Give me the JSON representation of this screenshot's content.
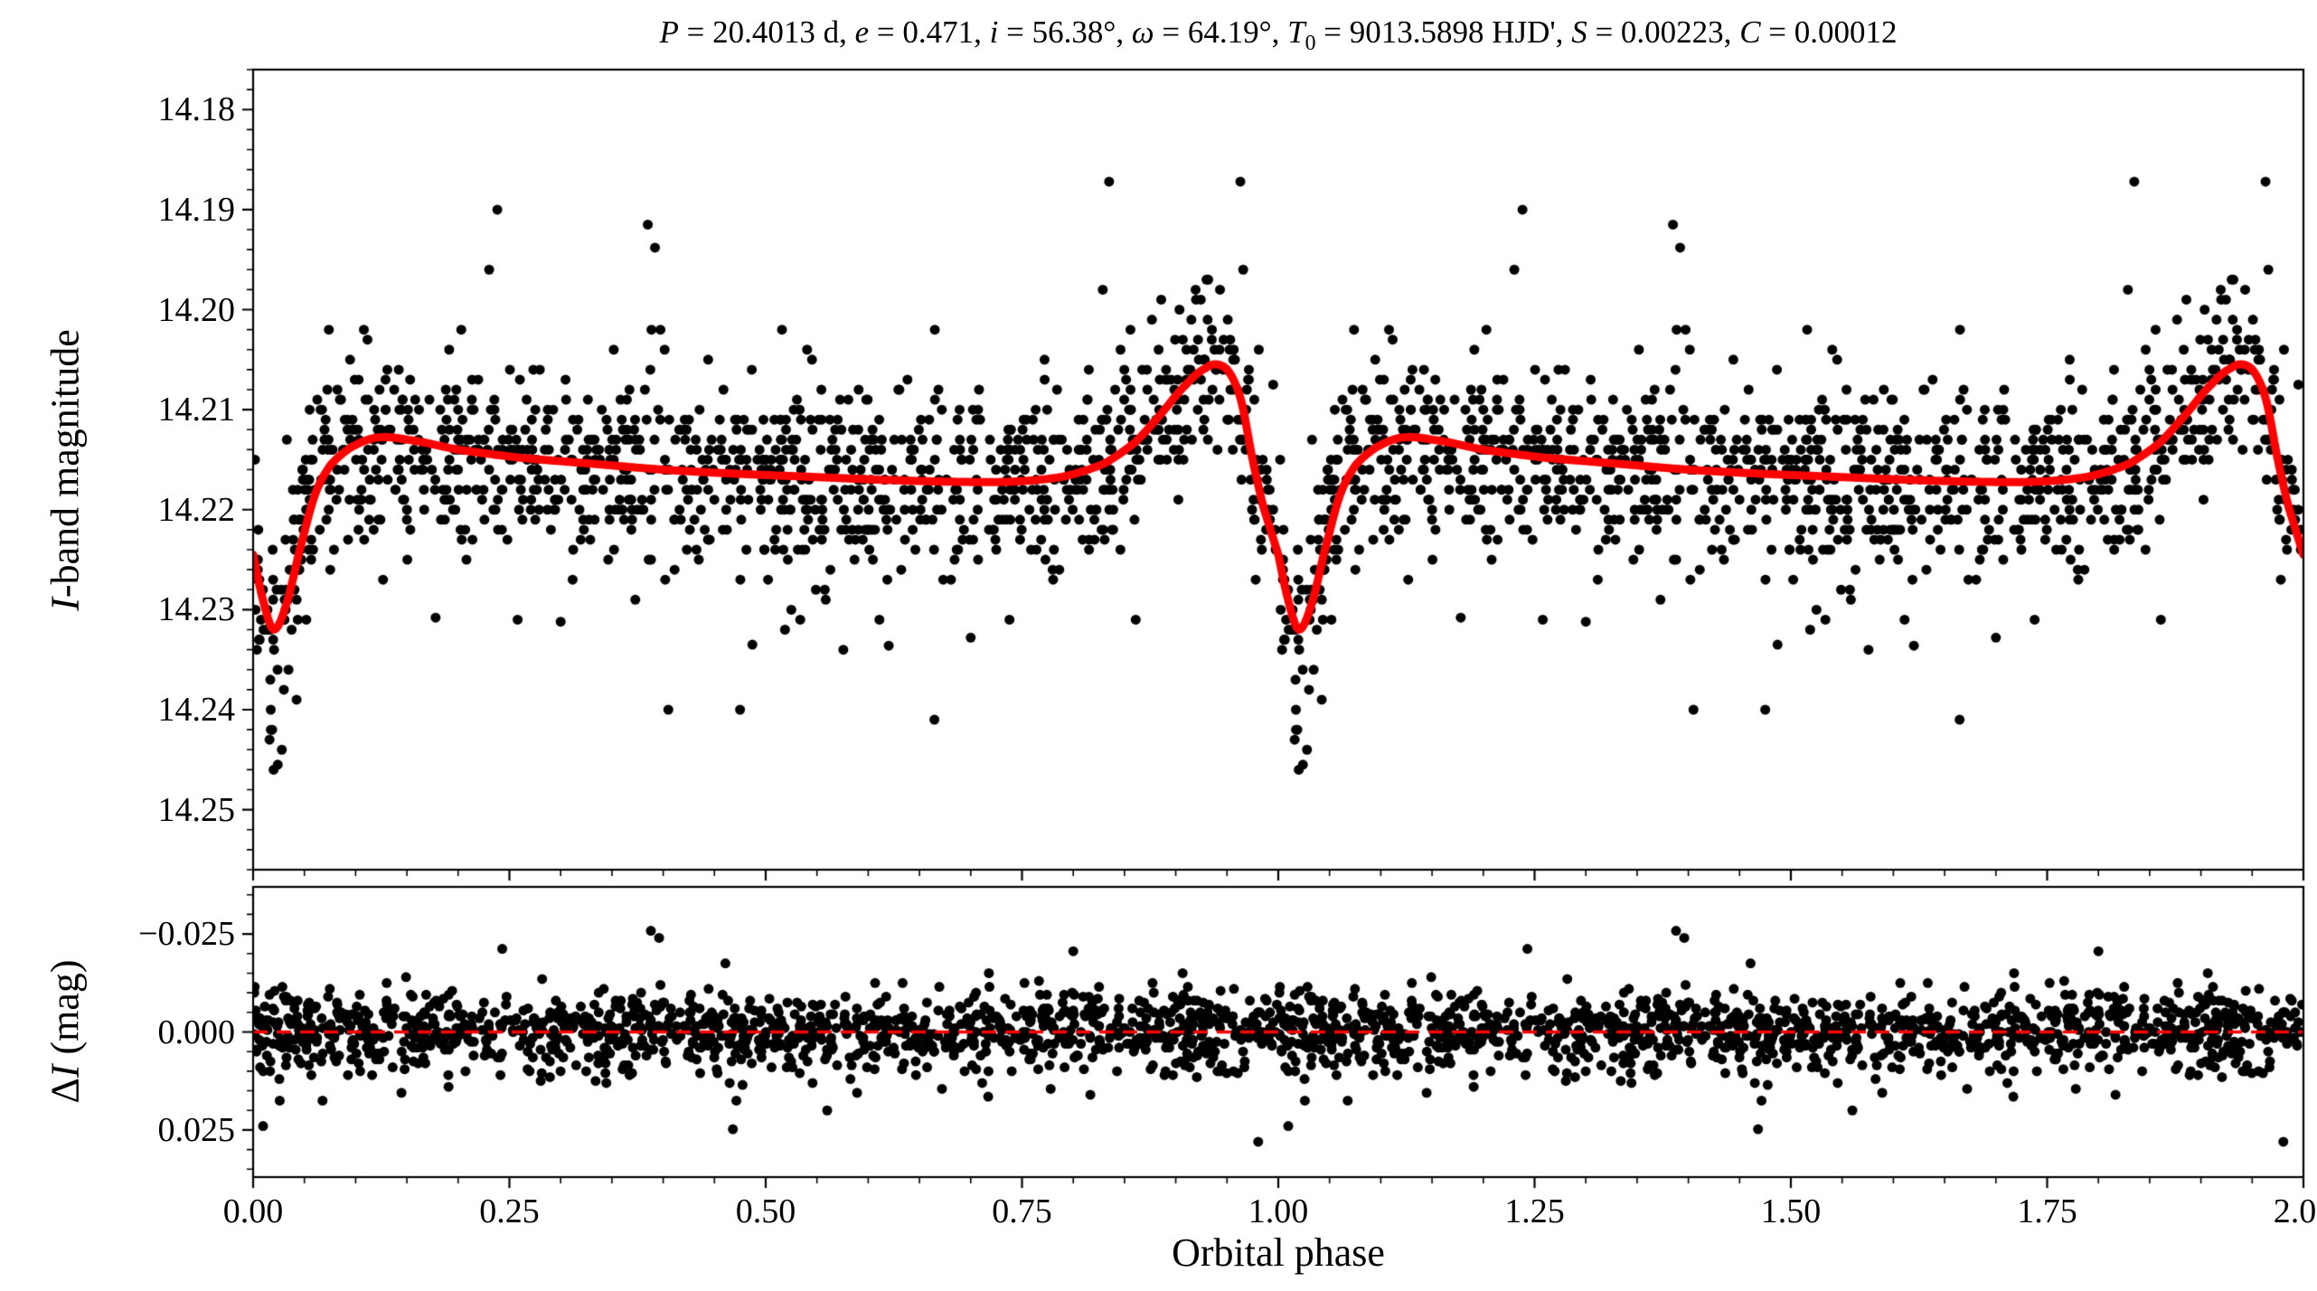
{
  "figure": {
    "title_text": "P = 20.4013 d, e = 0.471, i = 56.38°, ω = 64.19°, T0 = 9013.5898 HJD', S = 0.00223, C = 0.00012",
    "title_parts": [
      {
        "t": "P",
        "s": "it"
      },
      {
        "t": " = 20.4013 d, ",
        "s": "rm"
      },
      {
        "t": "e",
        "s": "it"
      },
      {
        "t": " = 0.471, ",
        "s": "rm"
      },
      {
        "t": "i",
        "s": "it"
      },
      {
        "t": " = 56.38°, ",
        "s": "rm"
      },
      {
        "t": "ω",
        "s": "it"
      },
      {
        "t": " = 64.19°, ",
        "s": "rm"
      },
      {
        "t": "T",
        "s": "it"
      },
      {
        "t": "0",
        "s": "sub"
      },
      {
        "t": " = 9013.5898 HJD', ",
        "s": "rm"
      },
      {
        "t": "S",
        "s": "it"
      },
      {
        "t": " = 0.00223, ",
        "s": "rm"
      },
      {
        "t": "C",
        "s": "it"
      },
      {
        "t": " = 0.00012",
        "s": "rm"
      }
    ],
    "xlabel": "Orbital phase"
  },
  "chart_data": {
    "type": "scatter",
    "xlabel": "Orbital phase",
    "xlim": [
      0,
      2
    ],
    "x_major_ticks": [
      0,
      0.25,
      0.5,
      0.75,
      1,
      1.25,
      1.5,
      1.75,
      2
    ],
    "x_tick_labels": [
      "0.00",
      "0.25",
      "0.50",
      "0.75",
      "1.00",
      "1.25",
      "1.50",
      "1.75",
      "2.00"
    ],
    "x_minor_step": 0.05,
    "duplicate_at_plus_one": true,
    "panels": [
      {
        "name": "light_curve",
        "ylabel_text": "I-band magnitude",
        "ylabel_parts": [
          {
            "t": "I",
            "s": "it"
          },
          {
            "t": "-band magnitude",
            "s": "rm"
          }
        ],
        "y_inverted": true,
        "ylim": [
          14.176,
          14.256
        ],
        "y_major_ticks": [
          14.18,
          14.19,
          14.2,
          14.21,
          14.22,
          14.23,
          14.24,
          14.25
        ],
        "y_tick_labels": [
          "14.18",
          "14.19",
          "14.20",
          "14.21",
          "14.22",
          "14.23",
          "14.24",
          "14.25"
        ],
        "y_minor_step": 0.002,
        "marker_color": "#000000",
        "model_color": "#ff0000",
        "model_keypoints": [
          [
            0.0,
            14.2245
          ],
          [
            0.01,
            14.2292
          ],
          [
            0.02,
            14.232
          ],
          [
            0.032,
            14.2296
          ],
          [
            0.045,
            14.2242
          ],
          [
            0.06,
            14.2186
          ],
          [
            0.075,
            14.2156
          ],
          [
            0.095,
            14.2138
          ],
          [
            0.12,
            14.2128
          ],
          [
            0.15,
            14.213
          ],
          [
            0.2,
            14.214
          ],
          [
            0.26,
            14.2148
          ],
          [
            0.33,
            14.2154
          ],
          [
            0.4,
            14.216
          ],
          [
            0.47,
            14.2164
          ],
          [
            0.54,
            14.2167
          ],
          [
            0.61,
            14.217
          ],
          [
            0.68,
            14.2172
          ],
          [
            0.74,
            14.2172
          ],
          [
            0.79,
            14.2167
          ],
          [
            0.83,
            14.2154
          ],
          [
            0.86,
            14.2133
          ],
          [
            0.885,
            14.2105
          ],
          [
            0.91,
            14.2075
          ],
          [
            0.93,
            14.2058
          ],
          [
            0.942,
            14.2055
          ],
          [
            0.953,
            14.2064
          ],
          [
            0.964,
            14.2092
          ],
          [
            0.975,
            14.215
          ],
          [
            0.985,
            14.2196
          ]
        ],
        "scatter_gen": {
          "n_base": 1150,
          "seed": 20,
          "sigma_core": 0.0044,
          "sigma_tail": 0.0085,
          "tail_frac": 0.12,
          "quantize": 0.001
        },
        "outliers": [
          [
            0.385,
            14.1915
          ],
          [
            0.392,
            14.1938
          ],
          [
            0.835,
            14.1872
          ],
          [
            0.93,
            14.197
          ],
          [
            0.963,
            14.1872
          ],
          [
            0.981,
            14.204
          ],
          [
            0.995,
            14.2075
          ],
          [
            0.475,
            14.24
          ],
          [
            0.487,
            14.2335
          ],
          [
            0.62,
            14.2336
          ],
          [
            0.7,
            14.2328
          ],
          [
            0.258,
            14.231
          ],
          [
            0.3,
            14.2312
          ],
          [
            0.178,
            14.2308
          ],
          [
            0.016,
            14.243
          ],
          [
            0.02,
            14.246
          ],
          [
            0.024,
            14.2455
          ],
          [
            0.028,
            14.244
          ]
        ]
      },
      {
        "name": "residuals",
        "ylabel_text": "ΔI (mag)",
        "ylabel_parts": [
          {
            "t": "Δ",
            "s": "rm"
          },
          {
            "t": "I",
            "s": "it"
          },
          {
            "t": " (mag)",
            "s": "rm"
          }
        ],
        "y_inverted": true,
        "ylim": [
          -0.037,
          0.037
        ],
        "y_major_ticks": [
          -0.025,
          0,
          0.025
        ],
        "y_tick_labels": [
          "−0.025",
          "0.000",
          "0.025"
        ],
        "y_minor_step": 0.005,
        "marker_color": "#000000",
        "zero_line_color": "#ff0000",
        "scatter_gen": {
          "n_base": 1150,
          "seed": 77,
          "sigma_core": 0.0052,
          "sigma_tail": 0.0095,
          "tail_frac": 0.1,
          "quantize": 0.0005
        },
        "outliers": [
          [
            0.388,
            -0.0258
          ],
          [
            0.396,
            -0.024
          ],
          [
            0.468,
            0.0248
          ],
          [
            0.56,
            0.02
          ],
          [
            0.8,
            -0.0206
          ],
          [
            0.243,
            -0.0212
          ]
        ]
      }
    ]
  }
}
